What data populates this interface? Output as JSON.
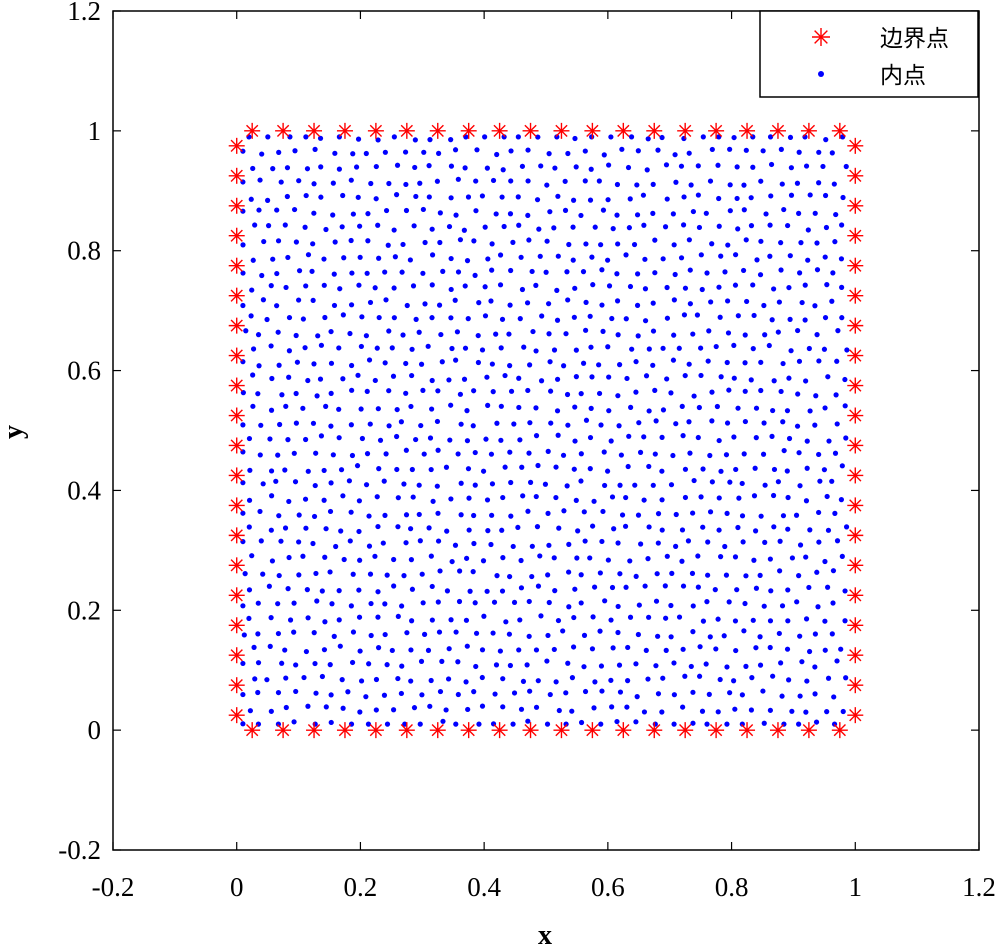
{
  "chart_data": {
    "type": "scatter",
    "title": "",
    "xlabel": "x",
    "ylabel": "y",
    "xlim": [
      -0.2,
      1.2
    ],
    "ylim": [
      -0.2,
      1.2
    ],
    "xticks": [
      -0.2,
      0,
      0.2,
      0.4,
      0.6,
      0.8,
      1,
      1.2
    ],
    "yticks": [
      -0.2,
      0,
      0.2,
      0.4,
      0.6,
      0.8,
      1,
      1.2
    ],
    "xtick_labels": [
      "-0.2",
      "0",
      "0.2",
      "0.4",
      "0.6",
      "0.8",
      "1",
      "1.2"
    ],
    "ytick_labels": [
      "-0.2",
      "0",
      "0.2",
      "0.4",
      "0.6",
      "0.8",
      "1",
      "1.2"
    ],
    "grid": false,
    "legend_position": "top-right",
    "series": [
      {
        "name": "边界点",
        "marker": "asterisk",
        "color": "#ff0000",
        "points": [
          [
            0.025,
            0
          ],
          [
            0.075,
            0
          ],
          [
            0.125,
            0
          ],
          [
            0.175,
            0
          ],
          [
            0.225,
            0
          ],
          [
            0.275,
            0
          ],
          [
            0.325,
            0
          ],
          [
            0.375,
            0
          ],
          [
            0.425,
            0
          ],
          [
            0.475,
            0
          ],
          [
            0.525,
            0
          ],
          [
            0.575,
            0
          ],
          [
            0.625,
            0
          ],
          [
            0.675,
            0
          ],
          [
            0.725,
            0
          ],
          [
            0.775,
            0
          ],
          [
            0.825,
            0
          ],
          [
            0.875,
            0
          ],
          [
            0.925,
            0
          ],
          [
            0.975,
            0
          ],
          [
            0.025,
            1
          ],
          [
            0.075,
            1
          ],
          [
            0.125,
            1
          ],
          [
            0.175,
            1
          ],
          [
            0.225,
            1
          ],
          [
            0.275,
            1
          ],
          [
            0.325,
            1
          ],
          [
            0.375,
            1
          ],
          [
            0.425,
            1
          ],
          [
            0.475,
            1
          ],
          [
            0.525,
            1
          ],
          [
            0.575,
            1
          ],
          [
            0.625,
            1
          ],
          [
            0.675,
            1
          ],
          [
            0.725,
            1
          ],
          [
            0.775,
            1
          ],
          [
            0.825,
            1
          ],
          [
            0.875,
            1
          ],
          [
            0.925,
            1
          ],
          [
            0.975,
            1
          ],
          [
            0,
            0.025
          ],
          [
            0,
            0.075
          ],
          [
            0,
            0.125
          ],
          [
            0,
            0.175
          ],
          [
            0,
            0.225
          ],
          [
            0,
            0.275
          ],
          [
            0,
            0.325
          ],
          [
            0,
            0.375
          ],
          [
            0,
            0.425
          ],
          [
            0,
            0.475
          ],
          [
            0,
            0.525
          ],
          [
            0,
            0.575
          ],
          [
            0,
            0.625
          ],
          [
            0,
            0.675
          ],
          [
            0,
            0.725
          ],
          [
            0,
            0.775
          ],
          [
            0,
            0.825
          ],
          [
            0,
            0.875
          ],
          [
            0,
            0.925
          ],
          [
            0,
            0.975
          ],
          [
            1,
            0.025
          ],
          [
            1,
            0.075
          ],
          [
            1,
            0.125
          ],
          [
            1,
            0.175
          ],
          [
            1,
            0.225
          ],
          [
            1,
            0.275
          ],
          [
            1,
            0.325
          ],
          [
            1,
            0.375
          ],
          [
            1,
            0.425
          ],
          [
            1,
            0.475
          ],
          [
            1,
            0.525
          ],
          [
            1,
            0.575
          ],
          [
            1,
            0.625
          ],
          [
            1,
            0.675
          ],
          [
            1,
            0.725
          ],
          [
            1,
            0.775
          ],
          [
            1,
            0.825
          ],
          [
            1,
            0.875
          ],
          [
            1,
            0.925
          ],
          [
            1,
            0.975
          ]
        ]
      },
      {
        "name": "内点",
        "marker": "dot",
        "color": "#0000ff",
        "distribution": "quasi-uniform hexagonal-like fill of interior of unit square",
        "x_range": [
          0.01,
          0.99
        ],
        "y_range": [
          0.01,
          0.99
        ],
        "approx_spacing": 0.029
      }
    ]
  }
}
